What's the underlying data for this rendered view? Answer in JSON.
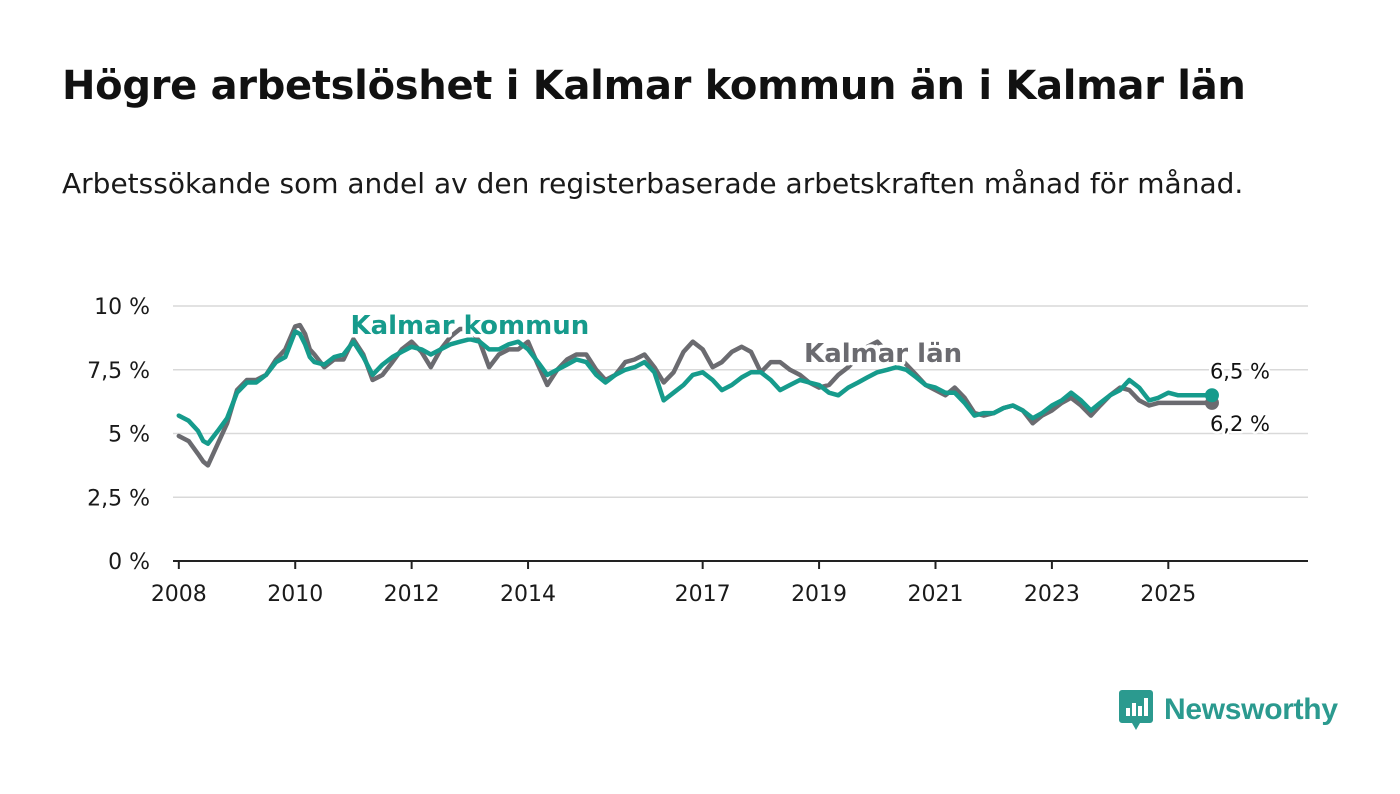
{
  "header": {
    "title": "Högre arbetslöshet i Kalmar kommun än i Kalmar län",
    "subtitle": "Arbetssökande som andel av den registerbaserade arbetskraften månad för månad."
  },
  "brand": {
    "name": "Newsworthy",
    "icon": "newsworthy-logo-icon",
    "color": "#2b9a8f"
  },
  "chart_data": {
    "type": "line",
    "title": "Högre arbetslöshet i Kalmar kommun än i Kalmar län",
    "subtitle": "Arbetssökande som andel av den registerbaserade arbetskraften månad för månad.",
    "xlabel": "",
    "ylabel": "",
    "ylim": [
      0,
      10
    ],
    "xlim": [
      2007.9,
      2027.4
    ],
    "y_ticks": [
      0,
      2.5,
      5,
      7.5,
      10
    ],
    "y_tick_labels": [
      "0 %",
      "2,5 %",
      "5 %",
      "7,5 %",
      "10 %"
    ],
    "x_ticks": [
      2008,
      2010,
      2012,
      2014,
      2017,
      2019,
      2021,
      2023,
      2025
    ],
    "x_tick_labels": [
      "2008",
      "2010",
      "2012",
      "2014",
      "2017",
      "2019",
      "2021",
      "2023",
      "2025"
    ],
    "grid": true,
    "series": [
      {
        "name": "Kalmar län",
        "label": "Kalmar län",
        "color": "#6b6b70",
        "end_label": "6,2 %",
        "x": [
          2008.0,
          2008.17,
          2008.33,
          2008.42,
          2008.5,
          2008.67,
          2008.83,
          2009.0,
          2009.17,
          2009.33,
          2009.5,
          2009.67,
          2009.83,
          2010.0,
          2010.08,
          2010.17,
          2010.25,
          2010.33,
          2010.5,
          2010.67,
          2010.83,
          2011.0,
          2011.17,
          2011.33,
          2011.5,
          2011.67,
          2011.83,
          2012.0,
          2012.17,
          2012.33,
          2012.5,
          2012.67,
          2012.83,
          2013.0,
          2013.17,
          2013.33,
          2013.5,
          2013.67,
          2013.83,
          2014.0,
          2014.17,
          2014.33,
          2014.5,
          2014.67,
          2014.83,
          2015.0,
          2015.17,
          2015.33,
          2015.5,
          2015.67,
          2015.83,
          2016.0,
          2016.17,
          2016.33,
          2016.5,
          2016.67,
          2016.83,
          2017.0,
          2017.17,
          2017.33,
          2017.5,
          2017.67,
          2017.83,
          2018.0,
          2018.17,
          2018.33,
          2018.5,
          2018.67,
          2018.83,
          2019.0,
          2019.17,
          2019.33,
          2019.5,
          2019.67,
          2019.83,
          2020.0,
          2020.17,
          2020.33,
          2020.5,
          2020.67,
          2020.83,
          2021.0,
          2021.17,
          2021.33,
          2021.5,
          2021.67,
          2021.83,
          2022.0,
          2022.17,
          2022.33,
          2022.5,
          2022.67,
          2022.83,
          2023.0,
          2023.17,
          2023.33,
          2023.5,
          2023.67,
          2023.83,
          2024.0,
          2024.17,
          2024.33,
          2024.5,
          2024.67,
          2024.83,
          2025.0,
          2025.17,
          2025.33,
          2025.5,
          2025.67,
          2025.75
        ],
        "values": [
          4.9,
          4.7,
          4.2,
          3.9,
          3.75,
          4.6,
          5.4,
          6.7,
          7.1,
          7.1,
          7.3,
          7.9,
          8.3,
          9.2,
          9.25,
          8.9,
          8.3,
          8.1,
          7.6,
          7.9,
          7.9,
          8.7,
          8.1,
          7.1,
          7.3,
          7.8,
          8.3,
          8.6,
          8.2,
          7.6,
          8.3,
          8.8,
          9.1,
          9.1,
          8.6,
          7.6,
          8.1,
          8.3,
          8.3,
          8.6,
          7.7,
          6.9,
          7.5,
          7.9,
          8.1,
          8.1,
          7.5,
          7.1,
          7.3,
          7.8,
          7.9,
          8.1,
          7.6,
          7.0,
          7.4,
          8.2,
          8.6,
          8.3,
          7.6,
          7.8,
          8.2,
          8.4,
          8.2,
          7.4,
          7.8,
          7.8,
          7.5,
          7.3,
          7.0,
          6.8,
          6.9,
          7.3,
          7.6,
          8.0,
          8.4,
          8.6,
          8.2,
          8.1,
          7.7,
          7.3,
          6.9,
          6.7,
          6.5,
          6.8,
          6.4,
          5.8,
          5.7,
          5.8,
          6.0,
          6.1,
          5.9,
          5.4,
          5.7,
          5.9,
          6.2,
          6.4,
          6.1,
          5.7,
          6.1,
          6.5,
          6.8,
          6.7,
          6.3,
          6.1,
          6.2,
          6.2,
          6.2,
          6.2,
          6.2,
          6.2,
          6.2
        ]
      },
      {
        "name": "Kalmar kommun",
        "label": "Kalmar kommun",
        "color": "#169b8c",
        "end_label": "6,5 %",
        "x": [
          2008.0,
          2008.17,
          2008.33,
          2008.42,
          2008.5,
          2008.67,
          2008.83,
          2009.0,
          2009.17,
          2009.33,
          2009.5,
          2009.67,
          2009.83,
          2010.0,
          2010.08,
          2010.17,
          2010.25,
          2010.33,
          2010.5,
          2010.67,
          2010.83,
          2011.0,
          2011.17,
          2011.33,
          2011.5,
          2011.67,
          2011.83,
          2012.0,
          2012.17,
          2012.33,
          2012.5,
          2012.67,
          2012.83,
          2013.0,
          2013.17,
          2013.33,
          2013.5,
          2013.67,
          2013.83,
          2014.0,
          2014.17,
          2014.33,
          2014.5,
          2014.67,
          2014.83,
          2015.0,
          2015.17,
          2015.33,
          2015.5,
          2015.67,
          2015.83,
          2016.0,
          2016.17,
          2016.33,
          2016.5,
          2016.67,
          2016.83,
          2017.0,
          2017.17,
          2017.33,
          2017.5,
          2017.67,
          2017.83,
          2018.0,
          2018.17,
          2018.33,
          2018.5,
          2018.67,
          2018.83,
          2019.0,
          2019.17,
          2019.33,
          2019.5,
          2019.67,
          2019.83,
          2020.0,
          2020.17,
          2020.33,
          2020.5,
          2020.67,
          2020.83,
          2021.0,
          2021.17,
          2021.33,
          2021.5,
          2021.67,
          2021.83,
          2022.0,
          2022.17,
          2022.33,
          2022.5,
          2022.67,
          2022.83,
          2023.0,
          2023.17,
          2023.33,
          2023.5,
          2023.67,
          2023.83,
          2024.0,
          2024.17,
          2024.33,
          2024.5,
          2024.67,
          2024.83,
          2025.0,
          2025.17,
          2025.33,
          2025.5,
          2025.67,
          2025.75
        ],
        "values": [
          5.7,
          5.5,
          5.1,
          4.7,
          4.6,
          5.1,
          5.6,
          6.6,
          7.0,
          7.0,
          7.3,
          7.8,
          8.0,
          9.0,
          8.9,
          8.5,
          8.0,
          7.8,
          7.7,
          8.0,
          8.1,
          8.6,
          8.0,
          7.3,
          7.7,
          8.0,
          8.2,
          8.4,
          8.3,
          8.1,
          8.3,
          8.5,
          8.6,
          8.7,
          8.6,
          8.3,
          8.3,
          8.5,
          8.6,
          8.3,
          7.8,
          7.3,
          7.5,
          7.7,
          7.9,
          7.8,
          7.3,
          7.0,
          7.3,
          7.5,
          7.6,
          7.8,
          7.4,
          6.3,
          6.6,
          6.9,
          7.3,
          7.4,
          7.1,
          6.7,
          6.9,
          7.2,
          7.4,
          7.4,
          7.1,
          6.7,
          6.9,
          7.1,
          7.0,
          6.9,
          6.6,
          6.5,
          6.8,
          7.0,
          7.2,
          7.4,
          7.5,
          7.6,
          7.5,
          7.2,
          6.9,
          6.8,
          6.6,
          6.6,
          6.2,
          5.7,
          5.8,
          5.8,
          6.0,
          6.1,
          5.9,
          5.6,
          5.8,
          6.1,
          6.3,
          6.6,
          6.3,
          5.9,
          6.2,
          6.5,
          6.7,
          7.1,
          6.8,
          6.3,
          6.4,
          6.6,
          6.5,
          6.5,
          6.5,
          6.5,
          6.5
        ]
      }
    ],
    "series_labels": [
      {
        "series": "Kalmar kommun",
        "text": "Kalmar kommun",
        "x": 2013.0,
        "y": 8.9
      },
      {
        "series": "Kalmar län",
        "text": "Kalmar län",
        "x": 2020.1,
        "y": 7.8
      }
    ]
  }
}
